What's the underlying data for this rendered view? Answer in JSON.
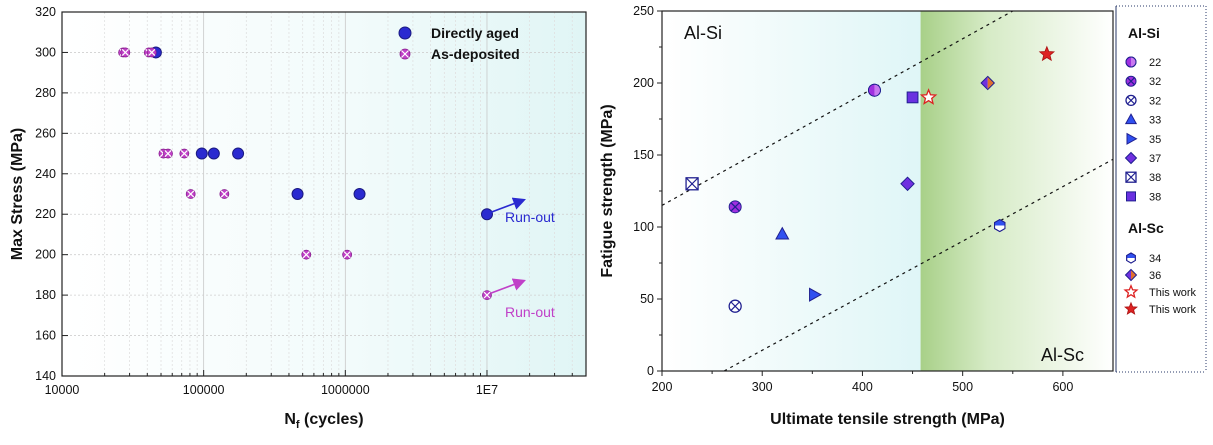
{
  "chart_data": [
    {
      "type": "scatter",
      "title": "",
      "xlabel": "N",
      "xlabel_sub": "f",
      "xlabel_rest": " (cycles)",
      "ylabel": "Max Stress (MPa)",
      "xscale": "log",
      "xlim": [
        10000,
        50000000
      ],
      "ylim": [
        140,
        320
      ],
      "x_tick_labels": [
        "10000",
        "100000",
        "1000000",
        "1E7"
      ],
      "x_ticks": [
        10000,
        100000,
        1000000,
        10000000
      ],
      "y_ticks": [
        140,
        160,
        180,
        200,
        220,
        240,
        260,
        280,
        300,
        320
      ],
      "grid": true,
      "legend_position": "top-right",
      "colors": {
        "directly_aged": "#2a2ad0",
        "as_deposited": "#c040c8",
        "directly_aged_edge": "#1a1a80",
        "background_tint": "#e2f6f6"
      },
      "series": [
        {
          "name": "Directly aged",
          "marker": "circle",
          "points": [
            {
              "x": 46000,
              "y": 300
            },
            {
              "x": 97000,
              "y": 250
            },
            {
              "x": 118000,
              "y": 250
            },
            {
              "x": 175000,
              "y": 250
            },
            {
              "x": 460000,
              "y": 230
            },
            {
              "x": 1260000,
              "y": 230
            },
            {
              "x": 10000000,
              "y": 220
            }
          ]
        },
        {
          "name": "As-deposited",
          "marker": "cross-circle",
          "points": [
            {
              "x": 27000,
              "y": 300
            },
            {
              "x": 28000,
              "y": 300
            },
            {
              "x": 41000,
              "y": 300
            },
            {
              "x": 43000,
              "y": 300
            },
            {
              "x": 52000,
              "y": 250
            },
            {
              "x": 56000,
              "y": 250
            },
            {
              "x": 73000,
              "y": 250
            },
            {
              "x": 81000,
              "y": 230
            },
            {
              "x": 140000,
              "y": 230
            },
            {
              "x": 530000,
              "y": 200
            },
            {
              "x": 1030000,
              "y": 200
            },
            {
              "x": 10000000,
              "y": 180
            }
          ]
        }
      ],
      "annotations": [
        {
          "text": "Run-out",
          "series": "Directly aged",
          "x": 10000000,
          "y": 220
        },
        {
          "text": "Run-out",
          "series": "As-deposited",
          "x": 10000000,
          "y": 180
        }
      ]
    },
    {
      "type": "scatter",
      "title": "",
      "xlabel": "Ultimate tensile strength (MPa)",
      "ylabel": "Fatigue strength (MPa)",
      "xlim": [
        200,
        650
      ],
      "ylim": [
        0,
        250
      ],
      "x_ticks": [
        200,
        300,
        400,
        500,
        600
      ],
      "y_ticks": [
        0,
        50,
        100,
        150,
        200,
        250
      ],
      "grid": false,
      "legend_position": "right",
      "colors": {
        "edge": "#202090",
        "purple": "#a030e0",
        "blue": "#3050f0",
        "star_red": "#dd2222",
        "tint_cyan": "#e6f8f8",
        "tint_green": "#a8d088"
      },
      "shaded_regions": [
        {
          "name": "Al-Si",
          "x_range": [
            200,
            458
          ]
        },
        {
          "name": "Al-Sc",
          "x_range": [
            458,
            650
          ]
        }
      ],
      "region_labels": [
        "Al-Si",
        "Al-Sc"
      ],
      "trend_lines": [
        {
          "from": [
            200,
            115
          ],
          "to": [
            550,
            250
          ]
        },
        {
          "from": [
            262,
            0
          ],
          "to": [
            650,
            147
          ]
        }
      ],
      "legend_groups": [
        {
          "heading": "Al-Si",
          "items": [
            {
              "label": "22",
              "marker": "circle-half"
            },
            {
              "label": "32",
              "marker": "circle-cross"
            },
            {
              "label": "32",
              "marker": "circle-x-open"
            },
            {
              "label": "33",
              "marker": "triangle-up"
            },
            {
              "label": "35",
              "marker": "triangle-right"
            },
            {
              "label": "37",
              "marker": "diamond"
            },
            {
              "label": "38",
              "marker": "square-x-open"
            },
            {
              "label": "38",
              "marker": "square-solid"
            }
          ]
        },
        {
          "heading": "Al-Sc",
          "items": [
            {
              "label": "34",
              "marker": "hexagon-half"
            },
            {
              "label": "36",
              "marker": "diamond-half"
            },
            {
              "label": "This work",
              "marker": "star-open"
            },
            {
              "label": "This work",
              "marker": "star-solid"
            }
          ]
        }
      ],
      "points": [
        {
          "x": 412,
          "y": 195,
          "marker": "circle-half"
        },
        {
          "x": 273,
          "y": 114,
          "marker": "circle-cross"
        },
        {
          "x": 273,
          "y": 45,
          "marker": "circle-x-open"
        },
        {
          "x": 320,
          "y": 95,
          "marker": "triangle-up"
        },
        {
          "x": 352,
          "y": 53,
          "marker": "triangle-right"
        },
        {
          "x": 445,
          "y": 130,
          "marker": "diamond"
        },
        {
          "x": 230,
          "y": 130,
          "marker": "square-x-open"
        },
        {
          "x": 450,
          "y": 190,
          "marker": "square-solid"
        },
        {
          "x": 537,
          "y": 101,
          "marker": "hexagon-half"
        },
        {
          "x": 525,
          "y": 200,
          "marker": "diamond-half"
        },
        {
          "x": 466,
          "y": 190,
          "marker": "star-open"
        },
        {
          "x": 584,
          "y": 220,
          "marker": "star-solid"
        }
      ]
    }
  ]
}
